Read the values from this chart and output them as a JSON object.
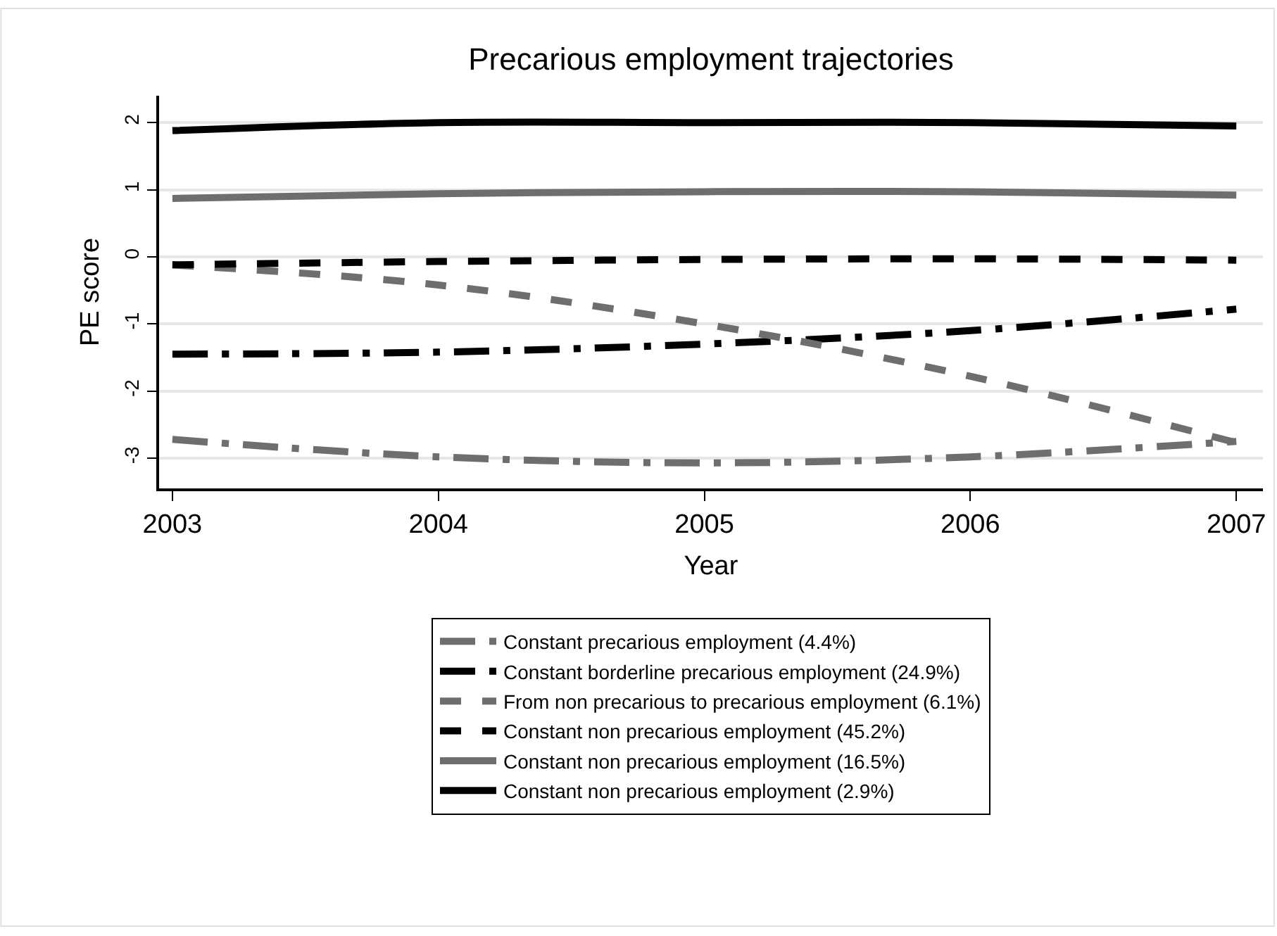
{
  "chart_data": {
    "type": "line",
    "title": "Precarious employment trajectories",
    "xlabel": "Year",
    "ylabel": "PE score",
    "x": [
      2003,
      2004,
      2005,
      2006,
      2007
    ],
    "series": [
      {
        "name": "Constant precarious employment (4.4%)",
        "color": "#6e6e6e",
        "line_style": "dashdot",
        "values": [
          -2.72,
          -2.98,
          -3.07,
          -2.98,
          -2.75
        ]
      },
      {
        "name": "Constant borderline precarious employment (24.9%)",
        "color": "#000000",
        "line_style": "dashdot",
        "values": [
          -1.45,
          -1.42,
          -1.3,
          -1.1,
          -0.78
        ]
      },
      {
        "name": "From non precarious to precarious employment (6.1%)",
        "color": "#6e6e6e",
        "line_style": "dashed",
        "values": [
          -0.12,
          -0.42,
          -1.0,
          -1.78,
          -2.77
        ]
      },
      {
        "name": "Constant non precarious employment (45.2%)",
        "color": "#000000",
        "line_style": "dashed",
        "values": [
          -0.12,
          -0.07,
          -0.04,
          -0.03,
          -0.05
        ]
      },
      {
        "name": "Constant non precarious employment (16.5%)",
        "color": "#6e6e6e",
        "line_style": "solid",
        "values": [
          0.87,
          0.94,
          0.97,
          0.97,
          0.92
        ]
      },
      {
        "name": "Constant non precarious employment (2.9%)",
        "color": "#000000",
        "line_style": "solid",
        "values": [
          1.88,
          2.0,
          2.0,
          2.0,
          1.95
        ]
      }
    ],
    "xlim": [
      2002.95,
      2007.1
    ],
    "xticks": [
      2003,
      2004,
      2005,
      2006,
      2007
    ],
    "ylim": [
      -3.45,
      2.4
    ],
    "yticks": [
      -3,
      -2,
      -1,
      0,
      1,
      2
    ],
    "grid": "y",
    "legend": "bottom",
    "marker": "none"
  }
}
